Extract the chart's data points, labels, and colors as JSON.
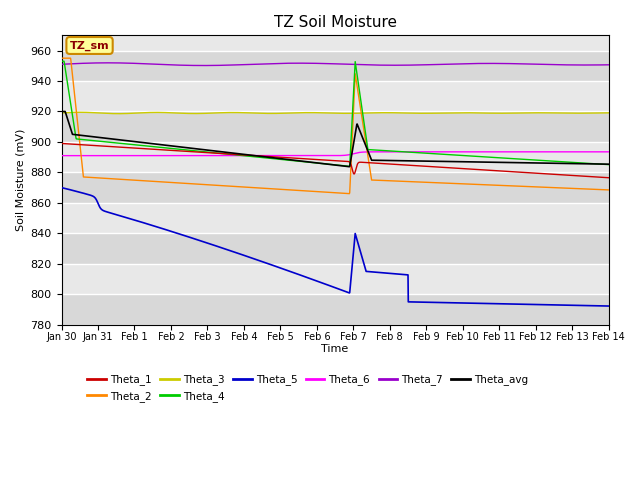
{
  "title": "TZ Soil Moisture",
  "xlabel": "Time",
  "ylabel": "Soil Moisture (mV)",
  "ylim": [
    780,
    970
  ],
  "yticks": [
    780,
    800,
    820,
    840,
    860,
    880,
    900,
    920,
    940,
    960
  ],
  "x_tick_labels": [
    "Jan 30",
    "Jan 31",
    "Feb 1",
    "Feb 2",
    "Feb 3",
    "Feb 4",
    "Feb 5",
    "Feb 6",
    "Feb 7",
    "Feb 8",
    "Feb 9",
    "Feb 10",
    "Feb 11",
    "Feb 12",
    "Feb 13",
    "Feb 14"
  ],
  "colors": {
    "Theta_1": "#cc0000",
    "Theta_2": "#ff8800",
    "Theta_3": "#cccc00",
    "Theta_4": "#00cc00",
    "Theta_5": "#0000cc",
    "Theta_6": "#ff00ff",
    "Theta_7": "#9900cc",
    "Theta_avg": "#000000"
  },
  "annotation_text": "TZ_sm",
  "annotation_bg": "#ffff99",
  "annotation_border": "#cc8800",
  "background_color": "#ffffff",
  "plot_bg": "#e8e8e8",
  "grid_color": "#ffffff"
}
